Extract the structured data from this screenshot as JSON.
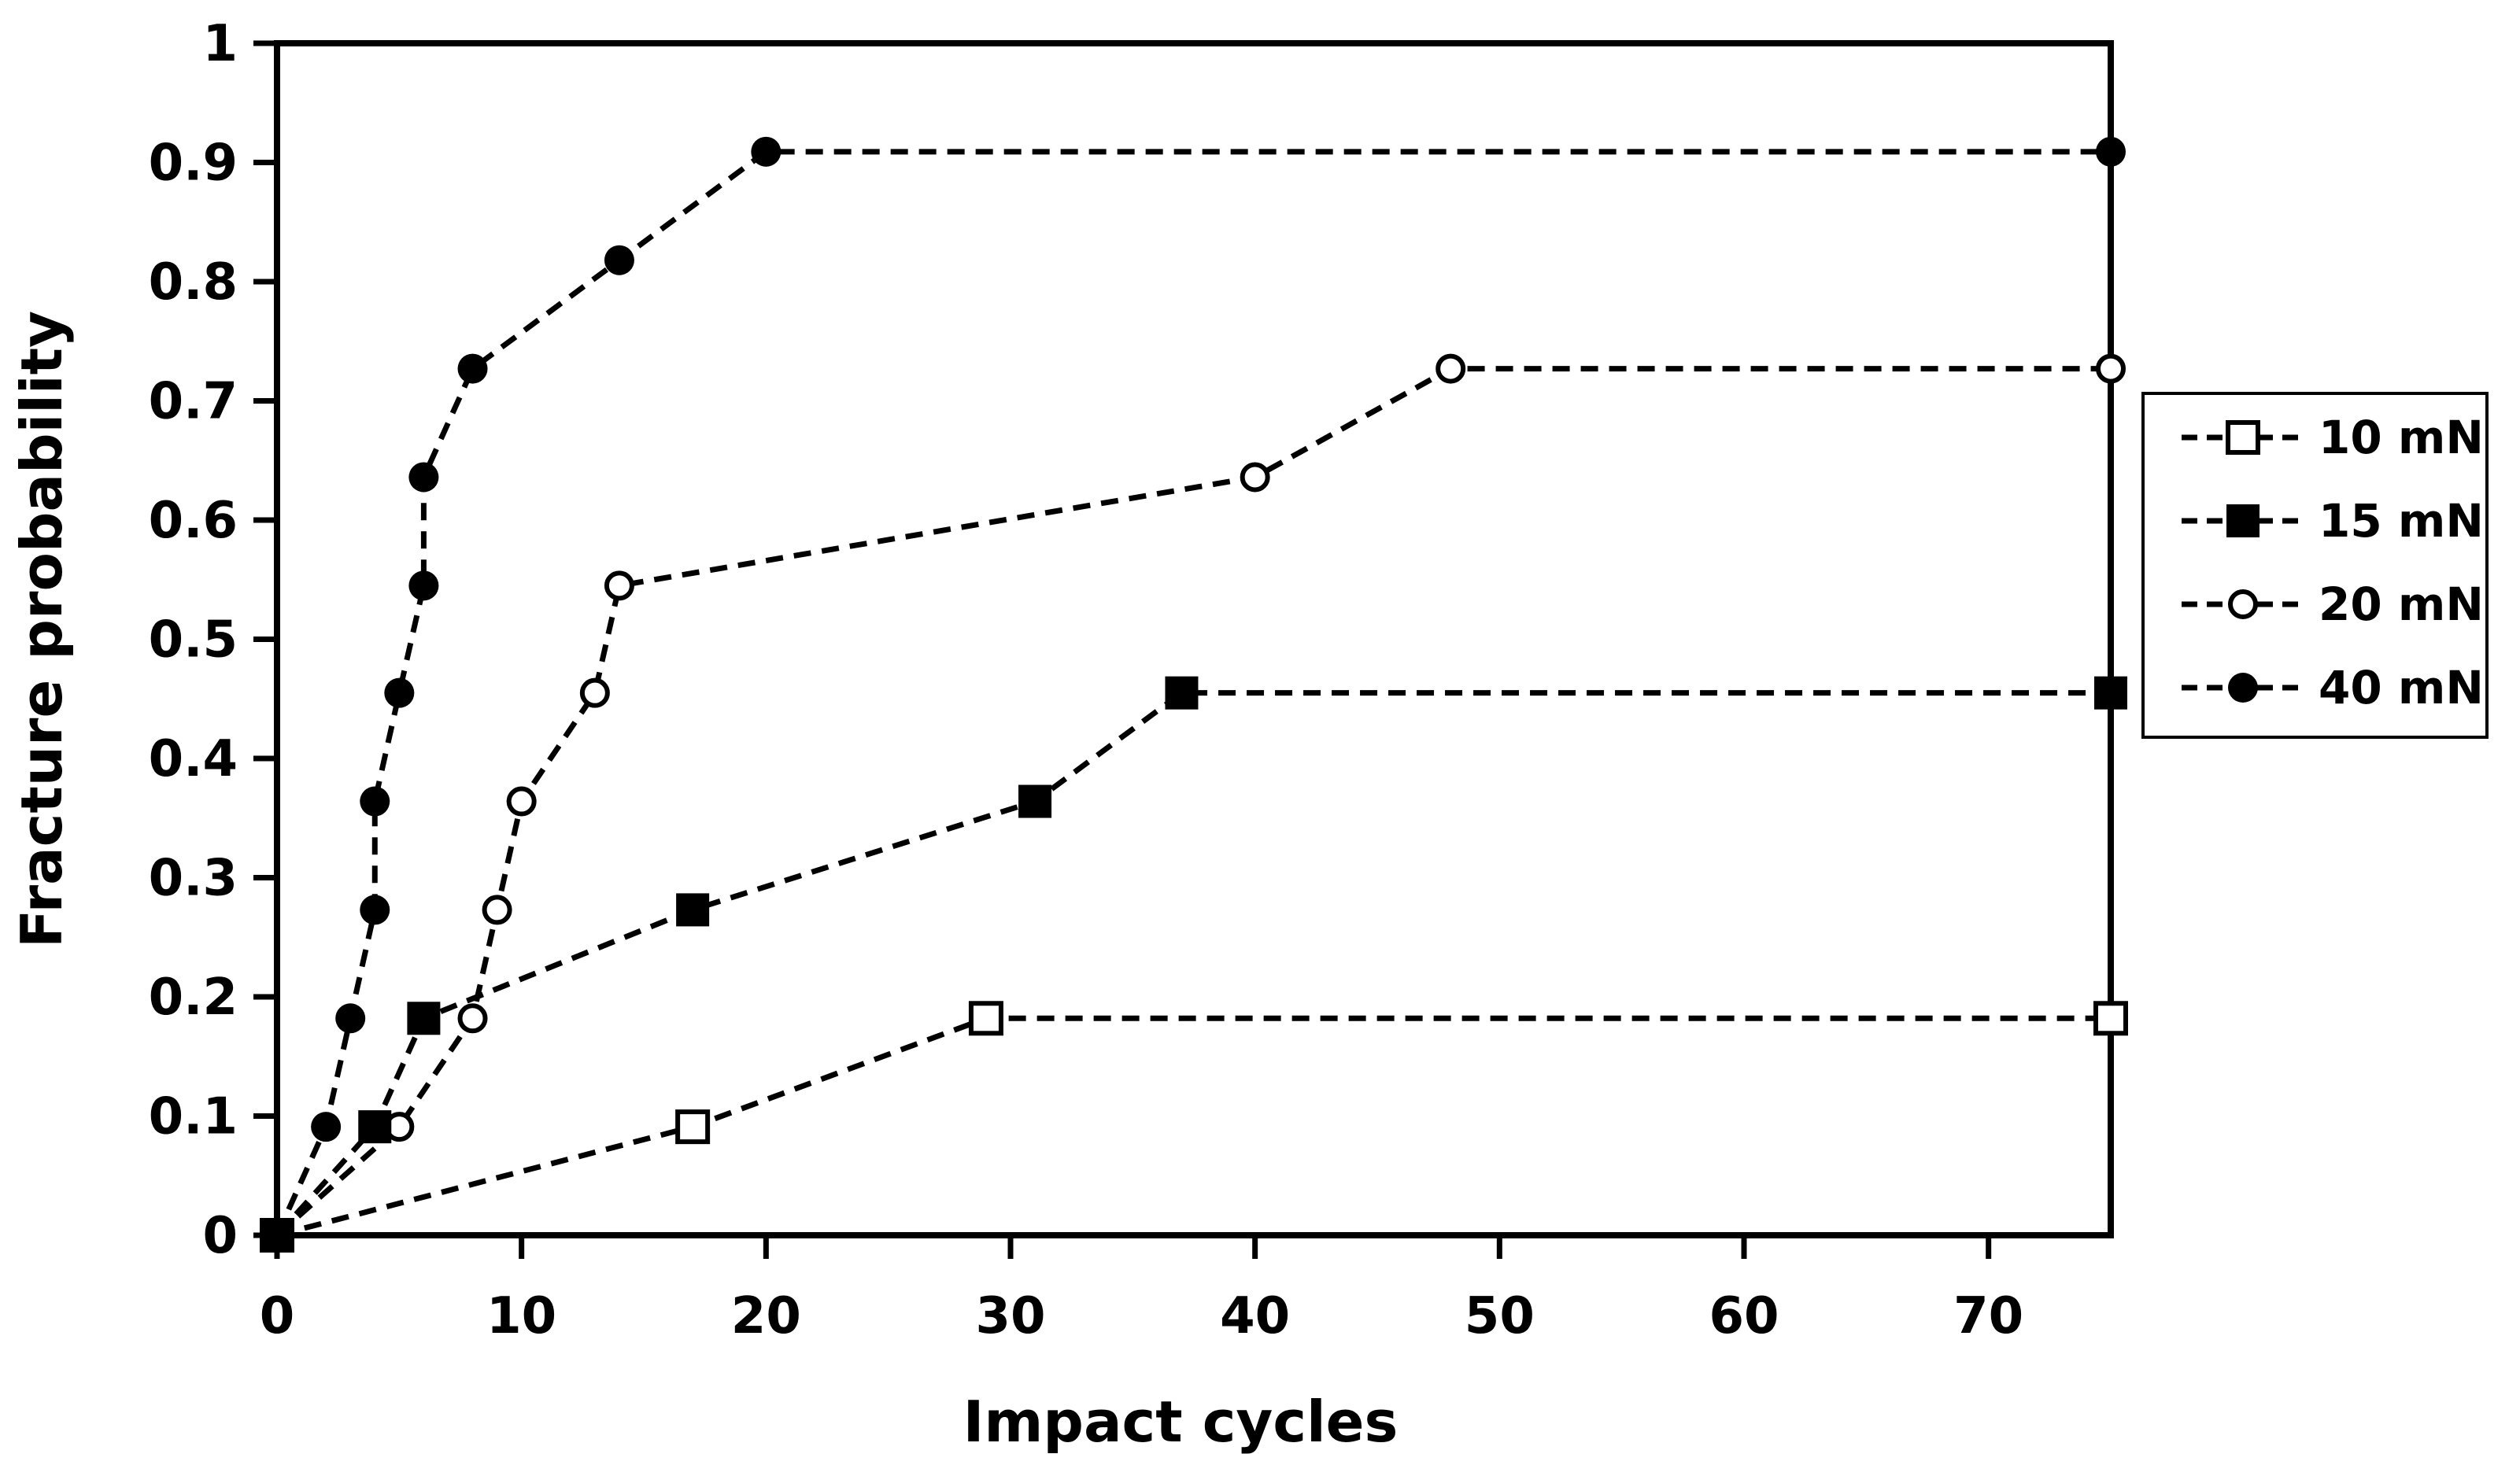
{
  "figure": {
    "background_color": "#ffffff",
    "line_color": "#000000",
    "open_marker_fill": "#ffffff"
  },
  "chart_data": {
    "type": "line",
    "title": "",
    "xlabel": "Impact cycles",
    "ylabel": "Fracture probability",
    "xlim": [
      0,
      75
    ],
    "ylim": [
      0,
      1
    ],
    "x_ticks": [
      0,
      10,
      20,
      30,
      40,
      50,
      60,
      70
    ],
    "x_tick_labels": [
      "0",
      "10",
      "20",
      "30",
      "40",
      "50",
      "60",
      "70"
    ],
    "y_ticks": [
      0,
      0.1,
      0.2,
      0.3,
      0.4,
      0.5,
      0.6,
      0.7,
      0.8,
      0.9,
      1
    ],
    "y_tick_labels": [
      "0",
      "0.1",
      "0.2",
      "0.3",
      "0.4",
      "0.5",
      "0.6",
      "0.7",
      "0.8",
      "0.9",
      "1"
    ],
    "grid": false,
    "line_style": "dashed",
    "legend_position": "right-outside",
    "series": [
      {
        "name": "10 mN",
        "marker": "open-square",
        "points": [
          [
            0,
            0
          ],
          [
            17,
            0.091
          ],
          [
            29,
            0.182
          ],
          [
            75,
            0.182
          ]
        ]
      },
      {
        "name": "15 mN",
        "marker": "filled-square",
        "points": [
          [
            0,
            0
          ],
          [
            4,
            0.091
          ],
          [
            6,
            0.182
          ],
          [
            17,
            0.273
          ],
          [
            31,
            0.364
          ],
          [
            37,
            0.455
          ],
          [
            75,
            0.455
          ]
        ]
      },
      {
        "name": "20 mN",
        "marker": "open-circle",
        "points": [
          [
            0,
            0
          ],
          [
            5,
            0.091
          ],
          [
            8,
            0.182
          ],
          [
            9,
            0.273
          ],
          [
            10,
            0.364
          ],
          [
            13,
            0.455
          ],
          [
            14,
            0.545
          ],
          [
            40,
            0.636
          ],
          [
            48,
            0.727
          ],
          [
            75,
            0.727
          ]
        ]
      },
      {
        "name": "40 mN",
        "marker": "filled-circle",
        "points": [
          [
            0,
            0
          ],
          [
            2,
            0.091
          ],
          [
            3,
            0.182
          ],
          [
            4,
            0.273
          ],
          [
            4,
            0.364
          ],
          [
            5,
            0.455
          ],
          [
            6,
            0.545
          ],
          [
            6,
            0.636
          ],
          [
            8,
            0.727
          ],
          [
            14,
            0.818
          ],
          [
            20,
            0.909
          ],
          [
            75,
            0.909
          ]
        ]
      }
    ]
  }
}
